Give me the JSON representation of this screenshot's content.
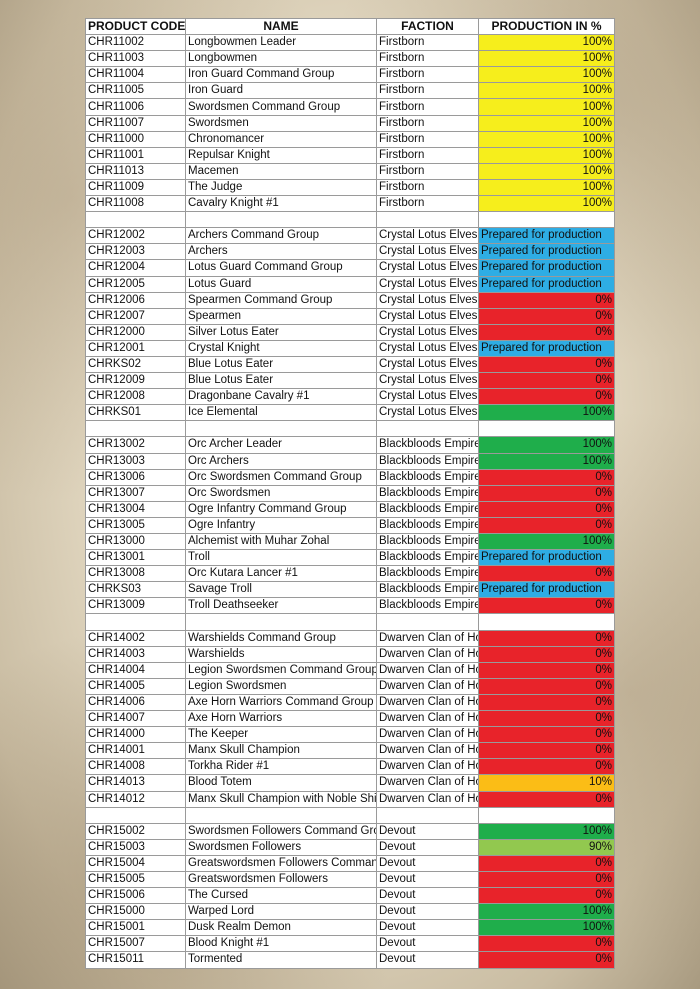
{
  "headers": [
    "PRODUCT CODE",
    "NAME",
    "FACTION",
    "PRODUCTION IN %"
  ],
  "status_colors": {
    "yellow": "#f6ee1c",
    "blue": "#2eade4",
    "red": "#e8232a",
    "green": "#1fae4b",
    "lightgreen": "#92c84f",
    "orange": "#fbbd16"
  },
  "sections": [
    {
      "rows": [
        [
          "CHR11002",
          "Longbowmen Leader",
          "Firstborn",
          "100%",
          "yellow"
        ],
        [
          "CHR11003",
          "Longbowmen",
          "Firstborn",
          "100%",
          "yellow"
        ],
        [
          "CHR11004",
          "Iron Guard Command Group",
          "Firstborn",
          "100%",
          "yellow"
        ],
        [
          "CHR11005",
          "Iron Guard",
          "Firstborn",
          "100%",
          "yellow"
        ],
        [
          "CHR11006",
          "Swordsmen Command Group",
          "Firstborn",
          "100%",
          "yellow"
        ],
        [
          "CHR11007",
          "Swordsmen",
          "Firstborn",
          "100%",
          "yellow"
        ],
        [
          "CHR11000",
          "Chronomancer",
          "Firstborn",
          "100%",
          "yellow"
        ],
        [
          "CHR11001",
          "Repulsar Knight",
          "Firstborn",
          "100%",
          "yellow"
        ],
        [
          "CHR11013",
          "Macemen",
          "Firstborn",
          "100%",
          "yellow"
        ],
        [
          "CHR11009",
          "The Judge",
          "Firstborn",
          "100%",
          "yellow"
        ],
        [
          "CHR11008",
          "Cavalry Knight #1",
          "Firstborn",
          "100%",
          "yellow"
        ]
      ]
    },
    {
      "rows": [
        [
          "CHR12002",
          "Archers Command Group",
          "Crystal Lotus Elves",
          "Prepared for production",
          "blue"
        ],
        [
          "CHR12003",
          "Archers",
          "Crystal Lotus Elves",
          "Prepared for production",
          "blue"
        ],
        [
          "CHR12004",
          "Lotus Guard Command Group",
          "Crystal Lotus Elves",
          "Prepared for production",
          "blue"
        ],
        [
          "CHR12005",
          "Lotus Guard",
          "Crystal Lotus Elves",
          "Prepared for production",
          "blue"
        ],
        [
          "CHR12006",
          "Spearmen Command Group",
          "Crystal Lotus Elves",
          "0%",
          "red"
        ],
        [
          "CHR12007",
          "Spearmen",
          "Crystal Lotus Elves",
          "0%",
          "red"
        ],
        [
          "CHR12000",
          "Silver Lotus Eater",
          "Crystal Lotus Elves",
          "0%",
          "red"
        ],
        [
          "CHR12001",
          "Crystal Knight",
          "Crystal Lotus Elves",
          "Prepared for production",
          "blue"
        ],
        [
          "CHRKS02",
          "Blue Lotus Eater",
          "Crystal Lotus Elves",
          "0%",
          "red"
        ],
        [
          "CHR12009",
          "Blue Lotus Eater",
          "Crystal Lotus Elves",
          "0%",
          "red"
        ],
        [
          "CHR12008",
          "Dragonbane Cavalry #1",
          "Crystal Lotus Elves",
          "0%",
          "red"
        ],
        [
          "CHRKS01",
          "Ice Elemental",
          "Crystal Lotus Elves",
          "100%",
          "green"
        ]
      ]
    },
    {
      "rows": [
        [
          "CHR13002",
          "Orc Archer Leader",
          "Blackbloods Empire",
          "100%",
          "green"
        ],
        [
          "CHR13003",
          "Orc Archers",
          "Blackbloods Empire",
          "100%",
          "green"
        ],
        [
          "CHR13006",
          "Orc Swordsmen Command Group",
          "Blackbloods Empire",
          "0%",
          "red"
        ],
        [
          "CHR13007",
          "Orc Swordsmen",
          "Blackbloods Empire",
          "0%",
          "red"
        ],
        [
          "CHR13004",
          "Ogre Infantry Command Group",
          "Blackbloods Empire",
          "0%",
          "red"
        ],
        [
          "CHR13005",
          "Ogre Infantry",
          "Blackbloods Empire",
          "0%",
          "red"
        ],
        [
          "CHR13000",
          "Alchemist with Muhar Zohal",
          "Blackbloods Empire",
          "100%",
          "green"
        ],
        [
          "CHR13001",
          "Troll",
          "Blackbloods Empire",
          "Prepared for production",
          "blue"
        ],
        [
          "CHR13008",
          "Orc Kutara Lancer #1",
          "Blackbloods Empire",
          "0%",
          "red"
        ],
        [
          "CHRKS03",
          "Savage Troll",
          "Blackbloods Empire",
          "Prepared for production",
          "blue"
        ],
        [
          "CHR13009",
          "Troll Deathseeker",
          "Blackbloods Empire",
          "0%",
          "red"
        ]
      ]
    },
    {
      "rows": [
        [
          "CHR14002",
          "Warshields Command Group",
          "Dwarven Clan of Ho",
          "0%",
          "red"
        ],
        [
          "CHR14003",
          "Warshields",
          "Dwarven Clan of Ho",
          "0%",
          "red"
        ],
        [
          "CHR14004",
          "Legion Swordsmen Command Group",
          "Dwarven Clan of Ho",
          "0%",
          "red"
        ],
        [
          "CHR14005",
          "Legion Swordsmen",
          "Dwarven Clan of Ho",
          "0%",
          "red"
        ],
        [
          "CHR14006",
          "Axe Horn Warriors Command Group",
          "Dwarven Clan of Ho",
          "0%",
          "red"
        ],
        [
          "CHR14007",
          "Axe Horn Warriors",
          "Dwarven Clan of Ho",
          "0%",
          "red"
        ],
        [
          "CHR14000",
          "The Keeper",
          "Dwarven Clan of Ho",
          "0%",
          "red"
        ],
        [
          "CHR14001",
          "Manx Skull Champion",
          "Dwarven Clan of Ho",
          "0%",
          "red"
        ],
        [
          "CHR14008",
          "Torkha Rider #1",
          "Dwarven Clan of Ho",
          "0%",
          "red"
        ],
        [
          "CHR14013",
          "Blood Totem",
          "Dwarven Clan of Ho",
          "10%",
          "orange"
        ],
        [
          "CHR14012",
          "Manx Skull Champion with Noble Shie",
          "Dwarven Clan of Ho",
          "0%",
          "red"
        ]
      ]
    },
    {
      "rows": [
        [
          "CHR15002",
          "Swordsmen Followers Command Grou",
          "Devout",
          "100%",
          "green"
        ],
        [
          "CHR15003",
          "Swordsmen Followers",
          "Devout",
          "90%",
          "lightgreen"
        ],
        [
          "CHR15004",
          "Greatswordsmen Followers Commanc",
          "Devout",
          "0%",
          "red"
        ],
        [
          "CHR15005",
          "Greatswordsmen Followers",
          "Devout",
          "0%",
          "red"
        ],
        [
          "CHR15006",
          "The Cursed",
          "Devout",
          "0%",
          "red"
        ],
        [
          "CHR15000",
          "Warped Lord",
          "Devout",
          "100%",
          "green"
        ],
        [
          "CHR15001",
          "Dusk Realm Demon",
          "Devout",
          "100%",
          "green"
        ],
        [
          "CHR15007",
          "Blood Knight #1",
          "Devout",
          "0%",
          "red"
        ],
        [
          "CHR15011",
          "Tormented",
          "Devout",
          "0%",
          "red"
        ]
      ]
    }
  ]
}
